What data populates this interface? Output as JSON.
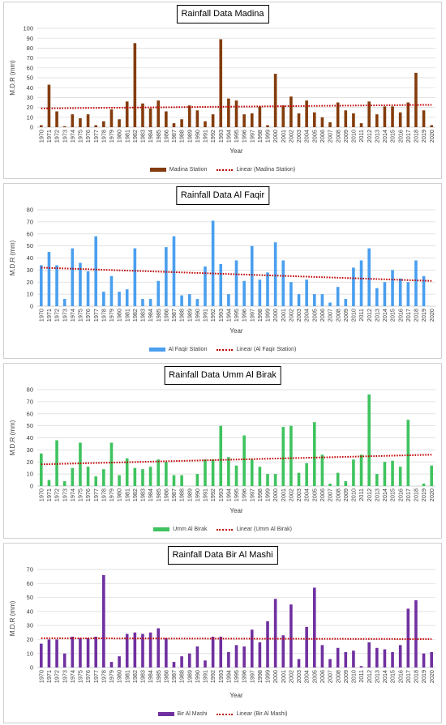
{
  "chart_data": [
    {
      "type": "bar",
      "title": "Rainfall Data Madina",
      "xlabel": "Year",
      "ylabel": "M.D.R (mm)",
      "ylim": [
        0,
        100
      ],
      "yticks": [
        0,
        10,
        20,
        30,
        40,
        50,
        60,
        70,
        80,
        90,
        100
      ],
      "grid": true,
      "legend": "bottom",
      "categories": [
        "1970",
        "1971",
        "1972",
        "1973",
        "1974",
        "1975",
        "1976",
        "1977",
        "1978",
        "1979",
        "1980",
        "1981",
        "1982",
        "1983",
        "1984",
        "1985",
        "1986",
        "1987",
        "1988",
        "1989",
        "1990",
        "1991",
        "1992",
        "1993",
        "1994",
        "1995",
        "1996",
        "1997",
        "1998",
        "1999",
        "2000",
        "2001",
        "2002",
        "2003",
        "2004",
        "2005",
        "2006",
        "2007",
        "2008",
        "2009",
        "2010",
        "2011",
        "2012",
        "2013",
        "2014",
        "2015",
        "2016",
        "2017",
        "2018",
        "2019",
        "2020"
      ],
      "series": [
        {
          "name": "Madina Station",
          "type": "bar",
          "color": "#843C0C",
          "values": [
            2,
            43,
            16,
            1,
            13,
            9,
            13,
            2,
            6,
            18,
            8,
            26,
            85,
            24,
            19,
            27,
            16,
            4,
            8,
            22,
            17,
            6,
            13,
            89,
            29,
            27,
            13,
            14,
            21,
            2,
            54,
            22,
            31,
            14,
            27,
            15,
            10,
            5,
            25,
            17,
            14,
            4,
            26,
            13,
            21,
            21,
            15,
            25,
            55,
            17,
            2
          ]
        },
        {
          "name": "Linear (Madina Station)",
          "type": "linear-trendline",
          "color": "#C00000",
          "x": [
            1970,
            2020
          ],
          "y": [
            19.0,
            22.6
          ]
        }
      ]
    },
    {
      "type": "bar",
      "title": "Rainfall Data Al Faqir",
      "xlabel": "Year",
      "ylabel": "M.D.R (mm)",
      "ylim": [
        0,
        80
      ],
      "yticks": [
        0,
        10,
        20,
        30,
        40,
        50,
        60,
        70,
        80
      ],
      "grid": true,
      "legend": "bottom",
      "categories": [
        "1970",
        "1971",
        "1972",
        "1973",
        "1974",
        "1975",
        "1976",
        "1977",
        "1978",
        "1979",
        "1980",
        "1981",
        "1982",
        "1983",
        "1984",
        "1985",
        "1986",
        "1987",
        "1988",
        "1989",
        "1990",
        "1991",
        "1992",
        "1993",
        "1994",
        "1995",
        "1996",
        "1997",
        "1998",
        "1999",
        "2000",
        "2001",
        "2002",
        "2003",
        "2004",
        "2005",
        "2006",
        "2007",
        "2008",
        "2009",
        "2010",
        "2011",
        "2012",
        "2013",
        "2014",
        "2015",
        "2016",
        "2017",
        "2018",
        "2019",
        "2020"
      ],
      "series": [
        {
          "name": "Al Faqir Station",
          "type": "bar",
          "color": "#4A9FEF",
          "values": [
            34,
            45,
            34,
            6,
            48,
            36,
            29,
            58,
            12,
            25,
            12,
            14,
            48,
            6,
            6,
            21,
            49,
            58,
            9,
            10,
            6,
            33,
            71,
            35,
            10,
            38,
            21,
            50,
            22,
            28,
            53,
            38,
            20,
            10,
            22,
            10,
            10,
            3,
            16,
            6,
            32,
            38,
            48,
            15,
            20,
            30,
            23,
            20,
            38,
            25,
            0
          ]
        },
        {
          "name": "Linear (Al Faqir Station)",
          "type": "linear-trendline",
          "color": "#C00000",
          "x": [
            1970,
            2020
          ],
          "y": [
            32.0,
            21.0
          ]
        }
      ]
    },
    {
      "type": "bar",
      "title": "Rainfall Data Umm Al Birak",
      "xlabel": "Year",
      "ylabel": "M.D.R (mm)",
      "ylim": [
        0,
        80
      ],
      "yticks": [
        0,
        10,
        20,
        30,
        40,
        50,
        60,
        70,
        80
      ],
      "grid": true,
      "legend": "bottom",
      "categories": [
        "1970",
        "1971",
        "1972",
        "1973",
        "1974",
        "1975",
        "1976",
        "1977",
        "1978",
        "1979",
        "1980",
        "1981",
        "1982",
        "1983",
        "1984",
        "1985",
        "1986",
        "1987",
        "1988",
        "1989",
        "1990",
        "1991",
        "1992",
        "1993",
        "1994",
        "1995",
        "1996",
        "1997",
        "1998",
        "1999",
        "2000",
        "2001",
        "2002",
        "2003",
        "2004",
        "2005",
        "2006",
        "2007",
        "2008",
        "2009",
        "2010",
        "2011",
        "2012",
        "2013",
        "2014",
        "2015",
        "2016",
        "2017",
        "2018",
        "2019",
        "2020"
      ],
      "series": [
        {
          "name": "Umm Al Birak",
          "type": "bar",
          "color": "#3FC35F",
          "values": [
            27,
            5,
            38,
            4,
            15,
            36,
            16,
            8,
            14,
            36,
            9,
            23,
            15,
            14,
            16,
            22,
            20,
            9,
            9,
            0,
            10,
            22,
            22,
            50,
            24,
            17,
            42,
            22,
            16,
            10,
            10,
            49,
            50,
            11,
            19,
            53,
            26,
            2,
            11,
            4,
            22,
            26,
            76,
            10,
            20,
            21,
            16,
            55,
            0,
            2,
            17
          ]
        },
        {
          "name": "Linear (Umm Al Birak)",
          "type": "linear-trendline",
          "color": "#C00000",
          "x": [
            1970,
            2020
          ],
          "y": [
            18.0,
            26.0
          ]
        }
      ]
    },
    {
      "type": "bar",
      "title": "Rainfall Data Bir Al Mashi",
      "xlabel": "Year",
      "ylabel": "M.D.R (mm)",
      "ylim": [
        0,
        70
      ],
      "yticks": [
        0,
        10,
        20,
        30,
        40,
        50,
        60,
        70
      ],
      "grid": true,
      "legend": "bottom",
      "categories": [
        "1970",
        "1971",
        "1972",
        "1973",
        "1974",
        "1975",
        "1976",
        "1977",
        "1978",
        "1979",
        "1980",
        "1981",
        "1982",
        "1983",
        "1984",
        "1985",
        "1986",
        "1987",
        "1988",
        "1989",
        "1990",
        "1991",
        "1992",
        "1993",
        "1994",
        "1995",
        "1996",
        "1997",
        "1998",
        "1999",
        "2000",
        "2001",
        "2002",
        "2003",
        "2004",
        "2005",
        "2006",
        "2007",
        "2008",
        "2009",
        "2010",
        "2011",
        "2012",
        "2013",
        "2014",
        "2015",
        "2016",
        "2017",
        "2018",
        "2019",
        "2020"
      ],
      "series": [
        {
          "name": "Bir Al Mashi",
          "type": "bar",
          "color": "#7030A0",
          "values": [
            17,
            20,
            20,
            10,
            22,
            21,
            21,
            22,
            66,
            4,
            8,
            24,
            25,
            24,
            25,
            28,
            21,
            4,
            8,
            10,
            15,
            5,
            22,
            22,
            11,
            16,
            15,
            27,
            18,
            33,
            49,
            23,
            45,
            6,
            29,
            57,
            16,
            6,
            14,
            11,
            12,
            1,
            18,
            14,
            13,
            11,
            16,
            42,
            48,
            10,
            11
          ]
        },
        {
          "name": "Linear (Bir Al Mashi)",
          "type": "linear-trendline",
          "color": "#C00000",
          "x": [
            1970,
            2020
          ],
          "y": [
            20.9,
            20.3
          ]
        }
      ]
    }
  ]
}
